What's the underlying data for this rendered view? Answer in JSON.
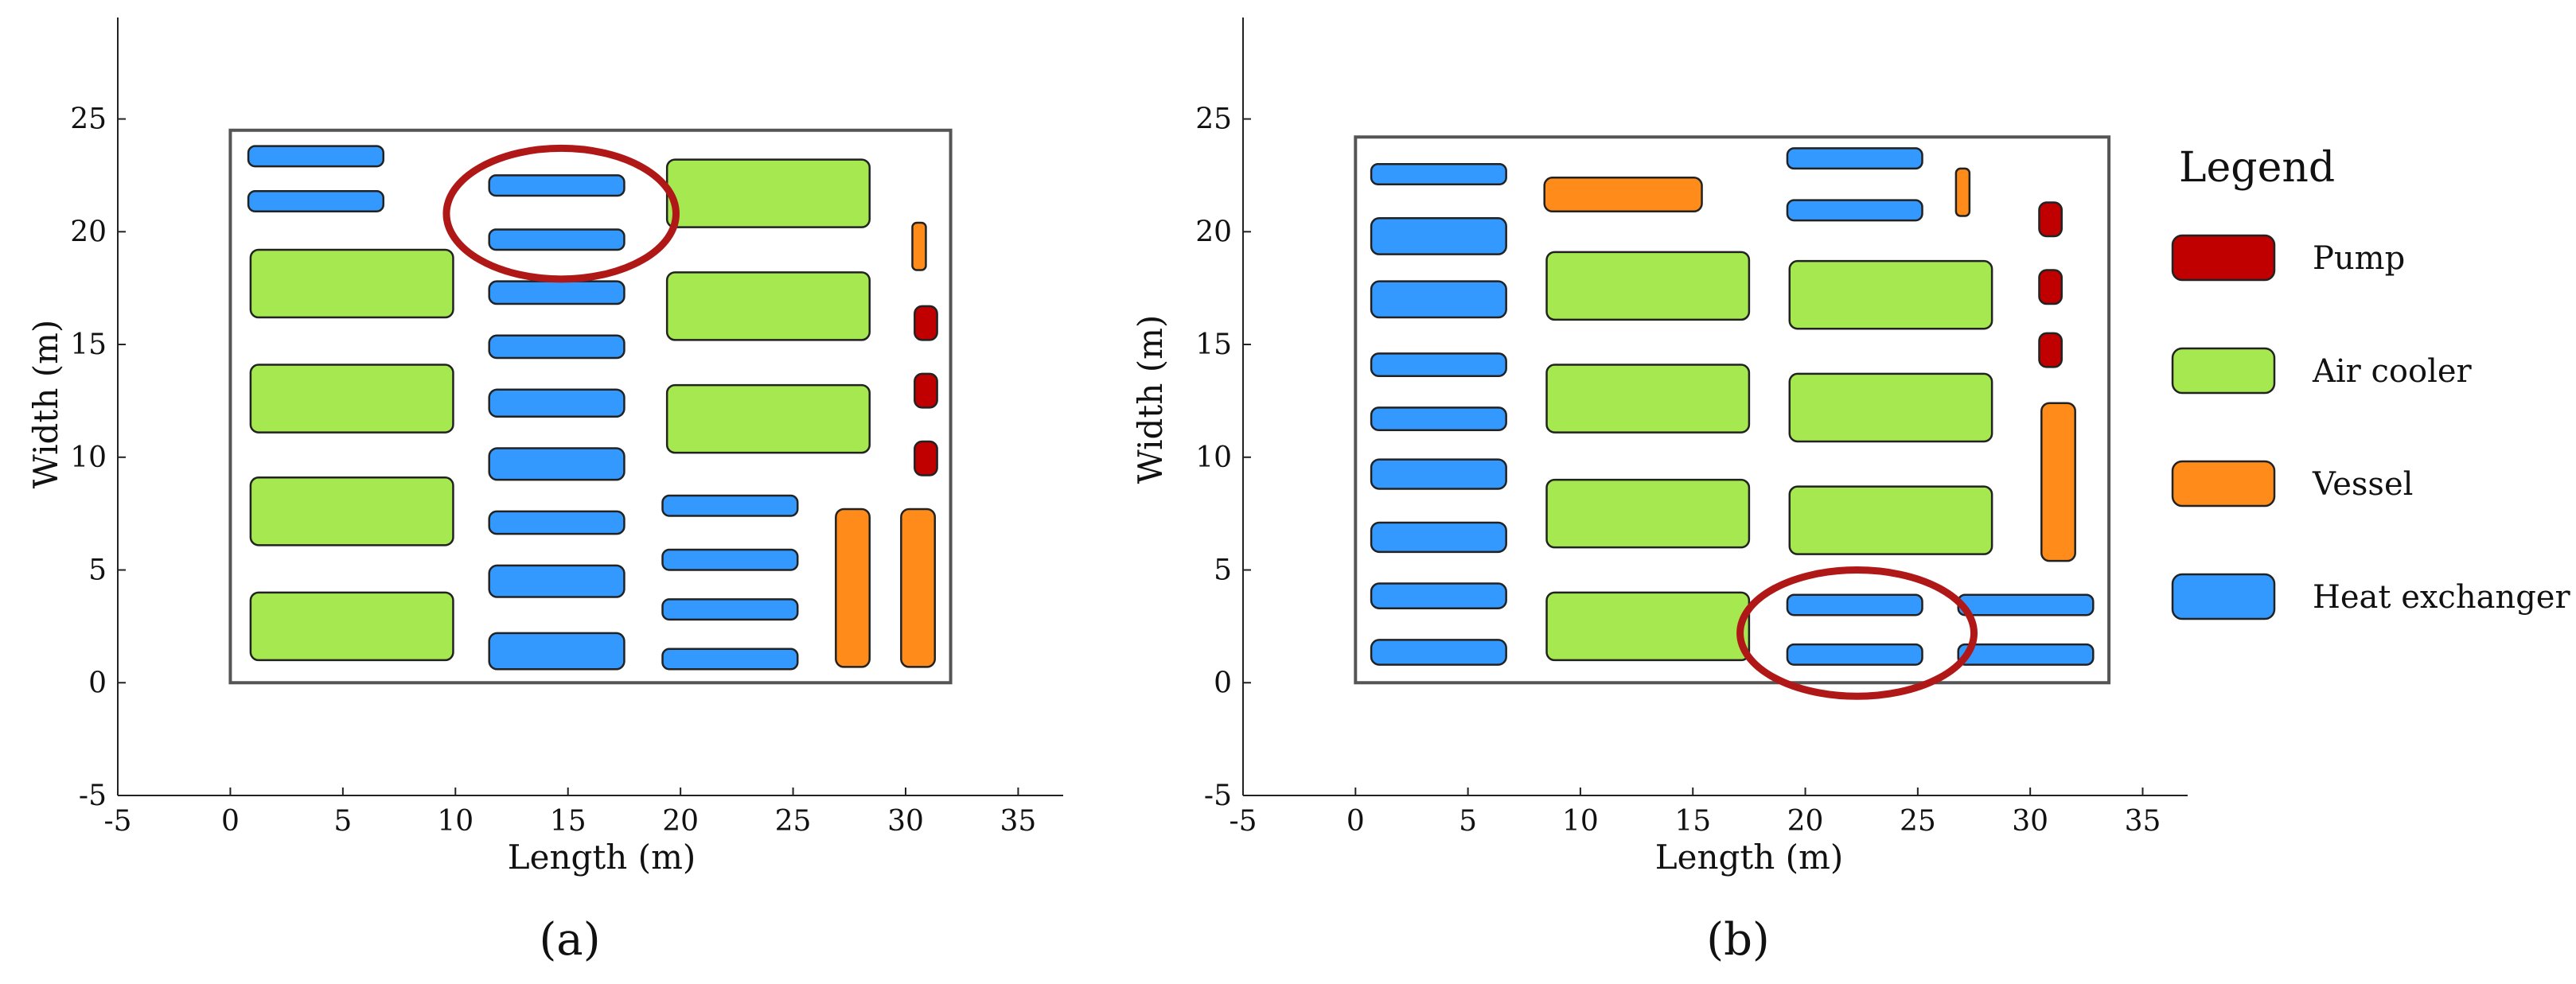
{
  "colors": {
    "pump": "#c00000",
    "air_cooler": "#a6e84f",
    "vessel": "#ff8c1a",
    "heat_exchanger": "#3399ff",
    "highlight": "#b01818"
  },
  "legend": {
    "title": "Legend",
    "items": [
      {
        "label": "Pump",
        "category": "pump"
      },
      {
        "label": "Air cooler",
        "category": "air_cooler"
      },
      {
        "label": "Vessel",
        "category": "vessel"
      },
      {
        "label": "Heat exchanger",
        "category": "heat_exchanger"
      }
    ]
  },
  "chart_data": [
    {
      "type": "layout-plot",
      "caption": "(a)",
      "xlabel": "Length (m)",
      "ylabel": "Width (m)",
      "xlim": [
        -5,
        37
      ],
      "ylim": [
        -5,
        29.5
      ],
      "xticks": [
        -5,
        0,
        5,
        10,
        15,
        20,
        25,
        30,
        35
      ],
      "yticks": [
        -5,
        0,
        5,
        10,
        15,
        20,
        25
      ],
      "site_boundary": {
        "x0": 0,
        "y0": 0,
        "x1": 32,
        "y1": 24.5
      },
      "highlight_ellipse": {
        "cx": 14.7,
        "cy": 20.8,
        "rx": 5.1,
        "ry": 2.9
      },
      "equipment": [
        {
          "category": "heat_exchanger",
          "x0": 0.8,
          "y0": 22.9,
          "x1": 6.8,
          "y1": 23.8
        },
        {
          "category": "heat_exchanger",
          "x0": 0.8,
          "y0": 20.9,
          "x1": 6.8,
          "y1": 21.8
        },
        {
          "category": "heat_exchanger",
          "x0": 11.5,
          "y0": 21.6,
          "x1": 17.5,
          "y1": 22.5
        },
        {
          "category": "heat_exchanger",
          "x0": 11.5,
          "y0": 19.2,
          "x1": 17.5,
          "y1": 20.1
        },
        {
          "category": "heat_exchanger",
          "x0": 11.5,
          "y0": 16.8,
          "x1": 17.5,
          "y1": 17.8
        },
        {
          "category": "heat_exchanger",
          "x0": 11.5,
          "y0": 14.4,
          "x1": 17.5,
          "y1": 15.4
        },
        {
          "category": "heat_exchanger",
          "x0": 11.5,
          "y0": 11.8,
          "x1": 17.5,
          "y1": 13.0
        },
        {
          "category": "heat_exchanger",
          "x0": 11.5,
          "y0": 9.0,
          "x1": 17.5,
          "y1": 10.4
        },
        {
          "category": "heat_exchanger",
          "x0": 11.5,
          "y0": 6.6,
          "x1": 17.5,
          "y1": 7.6
        },
        {
          "category": "heat_exchanger",
          "x0": 11.5,
          "y0": 3.8,
          "x1": 17.5,
          "y1": 5.2
        },
        {
          "category": "heat_exchanger",
          "x0": 11.5,
          "y0": 0.6,
          "x1": 17.5,
          "y1": 2.2
        },
        {
          "category": "heat_exchanger",
          "x0": 19.2,
          "y0": 7.4,
          "x1": 25.2,
          "y1": 8.3
        },
        {
          "category": "heat_exchanger",
          "x0": 19.2,
          "y0": 5.0,
          "x1": 25.2,
          "y1": 5.9
        },
        {
          "category": "heat_exchanger",
          "x0": 19.2,
          "y0": 2.8,
          "x1": 25.2,
          "y1": 3.7
        },
        {
          "category": "heat_exchanger",
          "x0": 19.2,
          "y0": 0.6,
          "x1": 25.2,
          "y1": 1.5
        },
        {
          "category": "air_cooler",
          "x0": 0.9,
          "y0": 16.2,
          "x1": 9.9,
          "y1": 19.2
        },
        {
          "category": "air_cooler",
          "x0": 0.9,
          "y0": 11.1,
          "x1": 9.9,
          "y1": 14.1
        },
        {
          "category": "air_cooler",
          "x0": 0.9,
          "y0": 6.1,
          "x1": 9.9,
          "y1": 9.1
        },
        {
          "category": "air_cooler",
          "x0": 0.9,
          "y0": 1.0,
          "x1": 9.9,
          "y1": 4.0
        },
        {
          "category": "air_cooler",
          "x0": 19.4,
          "y0": 20.2,
          "x1": 28.4,
          "y1": 23.2
        },
        {
          "category": "air_cooler",
          "x0": 19.4,
          "y0": 15.2,
          "x1": 28.4,
          "y1": 18.2
        },
        {
          "category": "air_cooler",
          "x0": 19.4,
          "y0": 10.2,
          "x1": 28.4,
          "y1": 13.2
        },
        {
          "category": "vessel",
          "x0": 26.9,
          "y0": 0.7,
          "x1": 28.4,
          "y1": 7.7
        },
        {
          "category": "vessel",
          "x0": 29.8,
          "y0": 0.7,
          "x1": 31.3,
          "y1": 7.7
        },
        {
          "category": "vessel",
          "x0": 30.3,
          "y0": 18.3,
          "x1": 30.9,
          "y1": 20.4
        },
        {
          "category": "pump",
          "x0": 30.4,
          "y0": 15.2,
          "x1": 31.4,
          "y1": 16.7
        },
        {
          "category": "pump",
          "x0": 30.4,
          "y0": 12.2,
          "x1": 31.4,
          "y1": 13.7
        },
        {
          "category": "pump",
          "x0": 30.4,
          "y0": 9.2,
          "x1": 31.4,
          "y1": 10.7
        }
      ]
    },
    {
      "type": "layout-plot",
      "caption": "(b)",
      "xlabel": "Length (m)",
      "ylabel": "Width (m)",
      "xlim": [
        -5,
        37
      ],
      "ylim": [
        -5,
        29.5
      ],
      "xticks": [
        -5,
        0,
        5,
        10,
        15,
        20,
        25,
        30,
        35
      ],
      "yticks": [
        -5,
        0,
        5,
        10,
        15,
        20,
        25
      ],
      "site_boundary": {
        "x0": 0,
        "y0": 0,
        "x1": 33.5,
        "y1": 24.2
      },
      "highlight_ellipse": {
        "cx": 22.3,
        "cy": 2.2,
        "rx": 5.2,
        "ry": 2.8
      },
      "equipment": [
        {
          "category": "heat_exchanger",
          "x0": 0.7,
          "y0": 22.1,
          "x1": 6.7,
          "y1": 23.0
        },
        {
          "category": "heat_exchanger",
          "x0": 0.7,
          "y0": 19.0,
          "x1": 6.7,
          "y1": 20.6
        },
        {
          "category": "heat_exchanger",
          "x0": 0.7,
          "y0": 16.2,
          "x1": 6.7,
          "y1": 17.8
        },
        {
          "category": "heat_exchanger",
          "x0": 0.7,
          "y0": 13.6,
          "x1": 6.7,
          "y1": 14.6
        },
        {
          "category": "heat_exchanger",
          "x0": 0.7,
          "y0": 11.2,
          "x1": 6.7,
          "y1": 12.2
        },
        {
          "category": "heat_exchanger",
          "x0": 0.7,
          "y0": 8.6,
          "x1": 6.7,
          "y1": 9.9
        },
        {
          "category": "heat_exchanger",
          "x0": 0.7,
          "y0": 5.8,
          "x1": 6.7,
          "y1": 7.1
        },
        {
          "category": "heat_exchanger",
          "x0": 0.7,
          "y0": 3.3,
          "x1": 6.7,
          "y1": 4.4
        },
        {
          "category": "heat_exchanger",
          "x0": 0.7,
          "y0": 0.8,
          "x1": 6.7,
          "y1": 1.9
        },
        {
          "category": "heat_exchanger",
          "x0": 19.2,
          "y0": 22.8,
          "x1": 25.2,
          "y1": 23.7
        },
        {
          "category": "heat_exchanger",
          "x0": 19.2,
          "y0": 20.5,
          "x1": 25.2,
          "y1": 21.4
        },
        {
          "category": "heat_exchanger",
          "x0": 19.2,
          "y0": 3.0,
          "x1": 25.2,
          "y1": 3.9
        },
        {
          "category": "heat_exchanger",
          "x0": 19.2,
          "y0": 0.8,
          "x1": 25.2,
          "y1": 1.7
        },
        {
          "category": "heat_exchanger",
          "x0": 26.8,
          "y0": 3.0,
          "x1": 32.8,
          "y1": 3.9
        },
        {
          "category": "heat_exchanger",
          "x0": 26.8,
          "y0": 0.8,
          "x1": 32.8,
          "y1": 1.7
        },
        {
          "category": "air_cooler",
          "x0": 8.5,
          "y0": 16.1,
          "x1": 17.5,
          "y1": 19.1
        },
        {
          "category": "air_cooler",
          "x0": 8.5,
          "y0": 11.1,
          "x1": 17.5,
          "y1": 14.1
        },
        {
          "category": "air_cooler",
          "x0": 8.5,
          "y0": 6.0,
          "x1": 17.5,
          "y1": 9.0
        },
        {
          "category": "air_cooler",
          "x0": 8.5,
          "y0": 1.0,
          "x1": 17.5,
          "y1": 4.0
        },
        {
          "category": "air_cooler",
          "x0": 19.3,
          "y0": 15.7,
          "x1": 28.3,
          "y1": 18.7
        },
        {
          "category": "air_cooler",
          "x0": 19.3,
          "y0": 10.7,
          "x1": 28.3,
          "y1": 13.7
        },
        {
          "category": "air_cooler",
          "x0": 19.3,
          "y0": 5.7,
          "x1": 28.3,
          "y1": 8.7
        },
        {
          "category": "vessel",
          "x0": 8.4,
          "y0": 20.9,
          "x1": 15.4,
          "y1": 22.4
        },
        {
          "category": "vessel",
          "x0": 26.7,
          "y0": 20.7,
          "x1": 27.3,
          "y1": 22.8
        },
        {
          "category": "vessel",
          "x0": 30.5,
          "y0": 5.4,
          "x1": 32.0,
          "y1": 12.4
        },
        {
          "category": "pump",
          "x0": 30.4,
          "y0": 19.8,
          "x1": 31.4,
          "y1": 21.3
        },
        {
          "category": "pump",
          "x0": 30.4,
          "y0": 16.8,
          "x1": 31.4,
          "y1": 18.3
        },
        {
          "category": "pump",
          "x0": 30.4,
          "y0": 14.0,
          "x1": 31.4,
          "y1": 15.5
        }
      ]
    }
  ]
}
